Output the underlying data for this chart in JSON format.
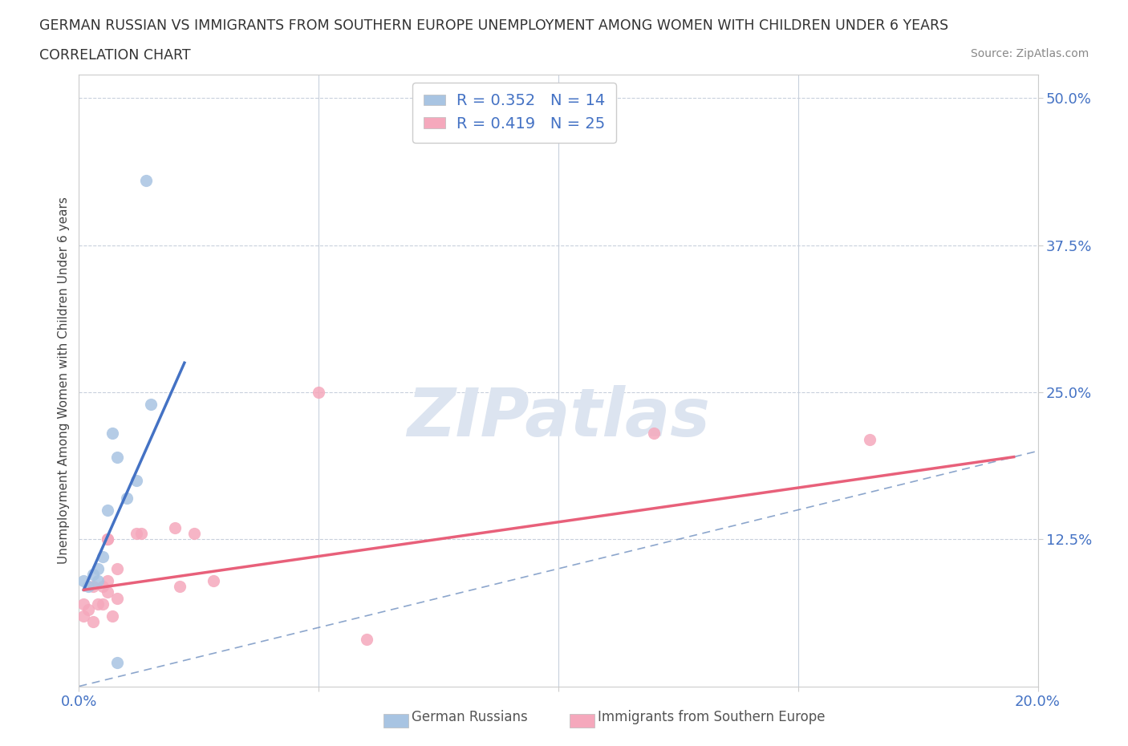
{
  "title_line1": "GERMAN RUSSIAN VS IMMIGRANTS FROM SOUTHERN EUROPE UNEMPLOYMENT AMONG WOMEN WITH CHILDREN UNDER 6 YEARS",
  "title_line2": "CORRELATION CHART",
  "source": "Source: ZipAtlas.com",
  "ylabel": "Unemployment Among Women with Children Under 6 years",
  "xlim": [
    0.0,
    0.2
  ],
  "ylim": [
    0.0,
    0.52
  ],
  "ytick_values": [
    0.125,
    0.25,
    0.375,
    0.5
  ],
  "ytick_labels": [
    "12.5%",
    "25.0%",
    "37.5%",
    "50.0%"
  ],
  "xtick_values": [
    0.0,
    0.05,
    0.1,
    0.15,
    0.2
  ],
  "xtick_labels": [
    "0.0%",
    "",
    "",
    "",
    "20.0%"
  ],
  "R_german": 0.352,
  "N_german": 14,
  "R_southern": 0.419,
  "N_southern": 25,
  "german_color": "#a8c4e2",
  "southern_color": "#f5a8bc",
  "german_line_color": "#4472c4",
  "southern_line_color": "#e8607a",
  "diagonal_color": "#7090c0",
  "tick_color": "#4472c4",
  "grid_color": "#c8d0dc",
  "background_color": "#ffffff",
  "german_line_x": [
    0.001,
    0.022
  ],
  "german_line_y": [
    0.082,
    0.275
  ],
  "southern_line_x": [
    0.001,
    0.195
  ],
  "southern_line_y": [
    0.082,
    0.195
  ],
  "german_points_x": [
    0.001,
    0.002,
    0.003,
    0.004,
    0.004,
    0.005,
    0.006,
    0.007,
    0.008,
    0.008,
    0.01,
    0.012,
    0.014,
    0.015
  ],
  "german_points_y": [
    0.09,
    0.085,
    0.095,
    0.09,
    0.1,
    0.11,
    0.15,
    0.215,
    0.195,
    0.02,
    0.16,
    0.175,
    0.43,
    0.24
  ],
  "southern_points_x": [
    0.001,
    0.001,
    0.002,
    0.003,
    0.003,
    0.004,
    0.005,
    0.005,
    0.006,
    0.006,
    0.006,
    0.006,
    0.007,
    0.008,
    0.008,
    0.012,
    0.013,
    0.02,
    0.021,
    0.024,
    0.028,
    0.05,
    0.06,
    0.12,
    0.165
  ],
  "southern_points_y": [
    0.07,
    0.06,
    0.065,
    0.055,
    0.085,
    0.07,
    0.07,
    0.085,
    0.08,
    0.09,
    0.125,
    0.125,
    0.06,
    0.075,
    0.1,
    0.13,
    0.13,
    0.135,
    0.085,
    0.13,
    0.09,
    0.25,
    0.04,
    0.215,
    0.21
  ],
  "watermark_text": "ZIPatlas",
  "watermark_color": "#dce4f0",
  "legend_text_color": "#222222",
  "legend_value_color": "#4472c4"
}
